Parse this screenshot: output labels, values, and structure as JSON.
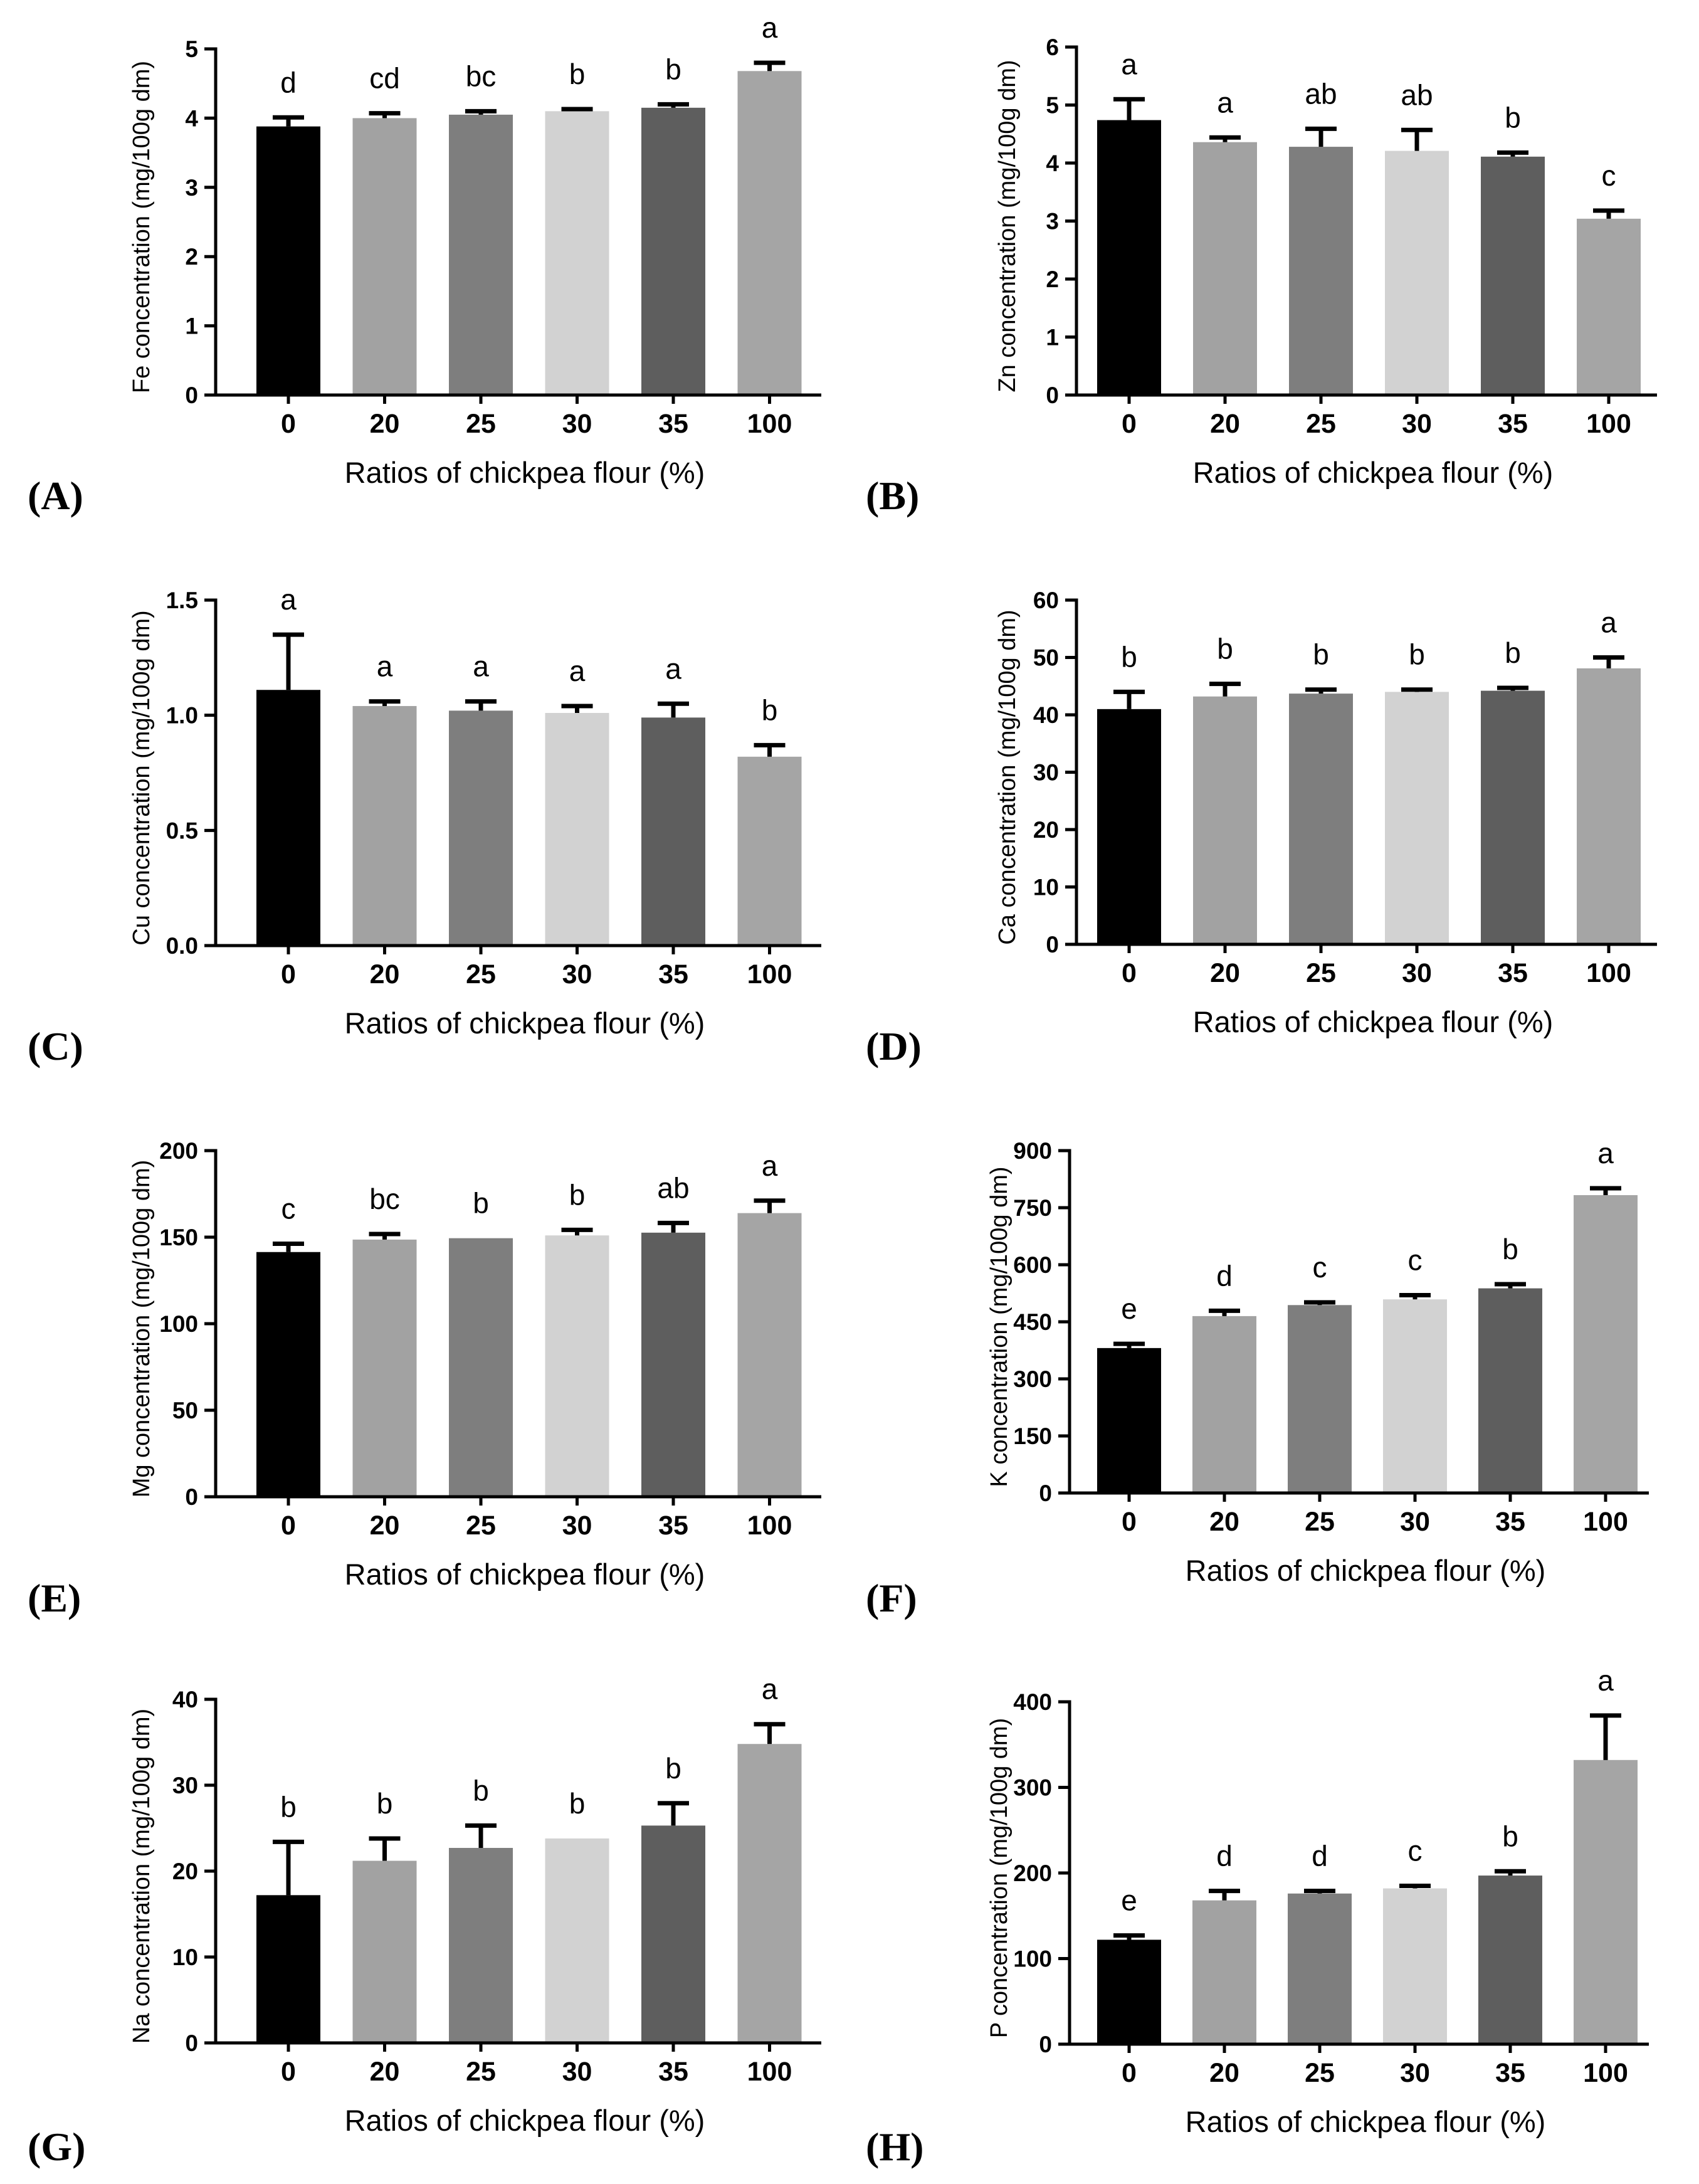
{
  "colors": {
    "bars": [
      "#000000",
      "#a2a2a2",
      "#7e7e7e",
      "#d2d2d2",
      "#5e5e5e",
      "#a5a5a5"
    ],
    "axis": "#000000",
    "background": "#ffffff"
  },
  "chart_data": [
    {
      "type": "bar",
      "panel_label": "(A)",
      "ylabel": "Fe concentration (mg/100g dm)",
      "xlabel": "Ratios of chickpea flour (%)",
      "categories": [
        "0",
        "20",
        "25",
        "30",
        "35",
        "100"
      ],
      "values": [
        3.88,
        4.0,
        4.05,
        4.1,
        4.15,
        4.68
      ],
      "errors": [
        0.13,
        0.07,
        0.05,
        0.03,
        0.05,
        0.12
      ],
      "letters": [
        "d",
        "cd",
        "bc",
        "b",
        "b",
        "a"
      ],
      "ylim": [
        0,
        5
      ],
      "yticks": [
        "0",
        "1",
        "2",
        "3",
        "4",
        "5"
      ]
    },
    {
      "type": "bar",
      "panel_label": "(B)",
      "ylabel": "Zn concentration (mg/100g dm)",
      "xlabel": "Ratios of chickpea flour (%)",
      "categories": [
        "0",
        "20",
        "25",
        "30",
        "35",
        "100"
      ],
      "values": [
        4.74,
        4.36,
        4.28,
        4.21,
        4.11,
        3.04
      ],
      "errors": [
        0.36,
        0.08,
        0.31,
        0.36,
        0.07,
        0.14
      ],
      "letters": [
        "a",
        "a",
        "ab",
        "ab",
        "b",
        "c"
      ],
      "ylim": [
        0,
        6
      ],
      "yticks": [
        "0",
        "1",
        "2",
        "3",
        "4",
        "5",
        "6"
      ]
    },
    {
      "type": "bar",
      "panel_label": "(C)",
      "ylabel": "Cu concentration (mg/100g dm)",
      "xlabel": "Ratios of chickpea flour (%)",
      "categories": [
        "0",
        "20",
        "25",
        "30",
        "35",
        "100"
      ],
      "values": [
        1.11,
        1.04,
        1.02,
        1.01,
        0.99,
        0.82
      ],
      "errors": [
        0.24,
        0.02,
        0.04,
        0.03,
        0.06,
        0.05
      ],
      "letters": [
        "a",
        "a",
        "a",
        "a",
        "a",
        "b"
      ],
      "ylim": [
        0,
        1.5
      ],
      "yticks": [
        "0.0",
        "0.5",
        "1.0",
        "1.5"
      ]
    },
    {
      "type": "bar",
      "panel_label": "(D)",
      "ylabel": "Ca concentration (mg/100g dm)",
      "xlabel": "Ratios of chickpea flour (%)",
      "categories": [
        "0",
        "20",
        "25",
        "30",
        "35",
        "100"
      ],
      "values": [
        41.0,
        43.2,
        43.7,
        44.0,
        44.2,
        48.1
      ],
      "errors": [
        3.0,
        2.2,
        0.7,
        0.4,
        0.5,
        1.9
      ],
      "letters": [
        "b",
        "b",
        "b",
        "b",
        "b",
        "a"
      ],
      "ylim": [
        0,
        60
      ],
      "yticks": [
        "0",
        "10",
        "20",
        "30",
        "40",
        "50",
        "60"
      ]
    },
    {
      "type": "bar",
      "panel_label": "(E)",
      "ylabel": "Mg concentration (mg/100g dm)",
      "xlabel": "Ratios of chickpea flour (%)",
      "categories": [
        "0",
        "20",
        "25",
        "30",
        "35",
        "100"
      ],
      "values": [
        141.4,
        148.6,
        149.4,
        151.0,
        152.6,
        163.9
      ],
      "errors": [
        4.8,
        3.2,
        0,
        3.2,
        5.6,
        7.2
      ],
      "letters": [
        "c",
        "bc",
        "b",
        "b",
        "ab",
        "a"
      ],
      "ylim": [
        0,
        200
      ],
      "yticks": [
        "0",
        "50",
        "100",
        "150",
        "200"
      ]
    },
    {
      "type": "bar",
      "panel_label": "(F)",
      "ylabel": "K concentration (mg/100g dm)",
      "xlabel": "Ratios of chickpea flour (%)",
      "categories": [
        "0",
        "20",
        "25",
        "30",
        "35",
        "100"
      ],
      "values": [
        381,
        465,
        494,
        509,
        538,
        783
      ],
      "errors": [
        11,
        14,
        7,
        11,
        11,
        18
      ],
      "letters": [
        "e",
        "d",
        "c",
        "c",
        "b",
        "a"
      ],
      "ylim": [
        0,
        900
      ],
      "yticks": [
        "0",
        "150",
        "300",
        "450",
        "600",
        "750",
        "900"
      ]
    },
    {
      "type": "bar",
      "panel_label": "(G)",
      "ylabel": "Na concentration (mg/100g dm)",
      "xlabel": "Ratios of chickpea flour (%)",
      "categories": [
        "0",
        "20",
        "25",
        "30",
        "35",
        "100"
      ],
      "values": [
        17.2,
        21.2,
        22.7,
        23.8,
        25.3,
        34.8
      ],
      "errors": [
        6.2,
        2.6,
        2.6,
        0,
        2.6,
        2.3
      ],
      "letters": [
        "b",
        "b",
        "b",
        "b",
        "b",
        "a"
      ],
      "ylim": [
        0,
        40
      ],
      "yticks": [
        "0",
        "10",
        "20",
        "30",
        "40"
      ]
    },
    {
      "type": "bar",
      "panel_label": "(H)",
      "ylabel": "P concentration (mg/100g dm)",
      "xlabel": "Ratios of chickpea flour (%)",
      "categories": [
        "0",
        "20",
        "25",
        "30",
        "35",
        "100"
      ],
      "values": [
        122,
        168,
        176,
        182,
        197,
        332
      ],
      "errors": [
        5,
        11,
        3,
        3,
        5,
        52
      ],
      "letters": [
        "e",
        "d",
        "d",
        "c",
        "b",
        "a"
      ],
      "ylim": [
        0,
        400
      ],
      "yticks": [
        "0",
        "100",
        "200",
        "300",
        "400"
      ]
    }
  ]
}
